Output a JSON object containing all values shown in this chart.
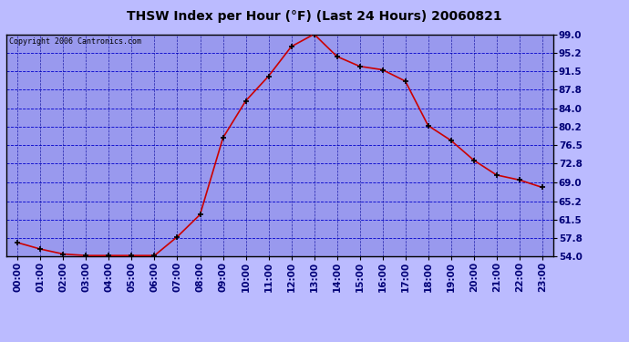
{
  "title": "THSW Index per Hour (°F) (Last 24 Hours) 20060821",
  "copyright": "Copyright 2006 Cantronics.com",
  "hours": [
    0,
    1,
    2,
    3,
    4,
    5,
    6,
    7,
    8,
    9,
    10,
    11,
    12,
    13,
    14,
    15,
    16,
    17,
    18,
    19,
    20,
    21,
    22,
    23
  ],
  "values": [
    56.8,
    55.5,
    54.5,
    54.2,
    54.2,
    54.2,
    54.2,
    58.0,
    62.5,
    78.0,
    85.5,
    90.5,
    96.5,
    99.0,
    94.5,
    92.5,
    91.8,
    89.5,
    80.5,
    77.5,
    73.5,
    70.5,
    69.5,
    68.0
  ],
  "line_color": "#cc0000",
  "marker_color": "#000000",
  "bg_color": "#bbbbff",
  "plot_bg_color": "#9999ee",
  "grid_color_h": "#0000cc",
  "grid_color_v": "#000099",
  "yticks": [
    54.0,
    57.8,
    61.5,
    65.2,
    69.0,
    72.8,
    76.5,
    80.2,
    84.0,
    87.8,
    91.5,
    95.2,
    99.0
  ],
  "ylim": [
    54.0,
    99.0
  ],
  "border_color": "#000000",
  "title_color": "#000000",
  "copyright_color": "#000000",
  "tick_label_color": "#000077"
}
